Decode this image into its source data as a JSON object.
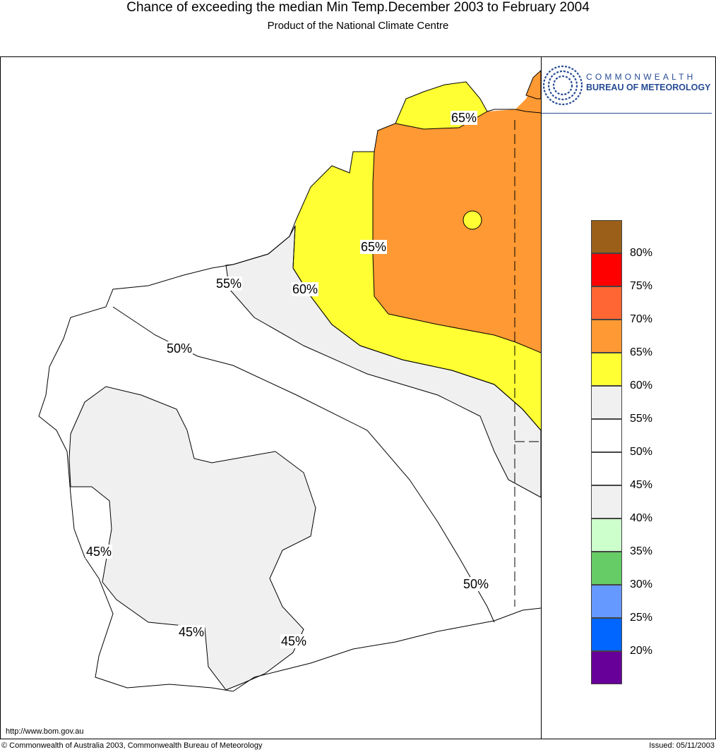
{
  "header": {
    "title": "Chance of exceeding the median Min Temp.December 2003 to February 2004",
    "subtitle": "Product of the National Climate Centre"
  },
  "logo": {
    "line1": "COMMONWEALTH",
    "line2": "BUREAU OF METEOROLOGY",
    "icon": "spiral-swirl-logo",
    "color": "#274b94"
  },
  "map": {
    "region": "Western Australia",
    "contour_labels": [
      "65%",
      "65%",
      "60%",
      "55%",
      "50%",
      "45%",
      "45%",
      "45%",
      "50%"
    ],
    "fill_colors": {
      "65-70": "#ff9933",
      "60-65": "#ffff33",
      "55-60": "#f0f0f0",
      "50-55": "#ffffff",
      "45-50": "#ffffff",
      "40-45": "#f0f0f0"
    }
  },
  "legend": {
    "labels": [
      "80%",
      "75%",
      "70%",
      "65%",
      "60%",
      "55%",
      "50%",
      "45%",
      "40%",
      "35%",
      "30%",
      "25%",
      "20%"
    ],
    "colors": [
      "#9b5f1a",
      "#ff0000",
      "#ff6633",
      "#ff9933",
      "#ffff33",
      "#f0f0f0",
      "#ffffff",
      "#ffffff",
      "#f0f0f0",
      "#ccffcc",
      "#66cc66",
      "#6699ff",
      "#0066ff",
      "#660099"
    ]
  },
  "footer": {
    "url": "http://www.bom.gov.au",
    "copyright": "© Commonwealth of Australia 2003, Commonwealth Bureau of Meteorology",
    "issued": "Issued: 05/11/2003"
  }
}
